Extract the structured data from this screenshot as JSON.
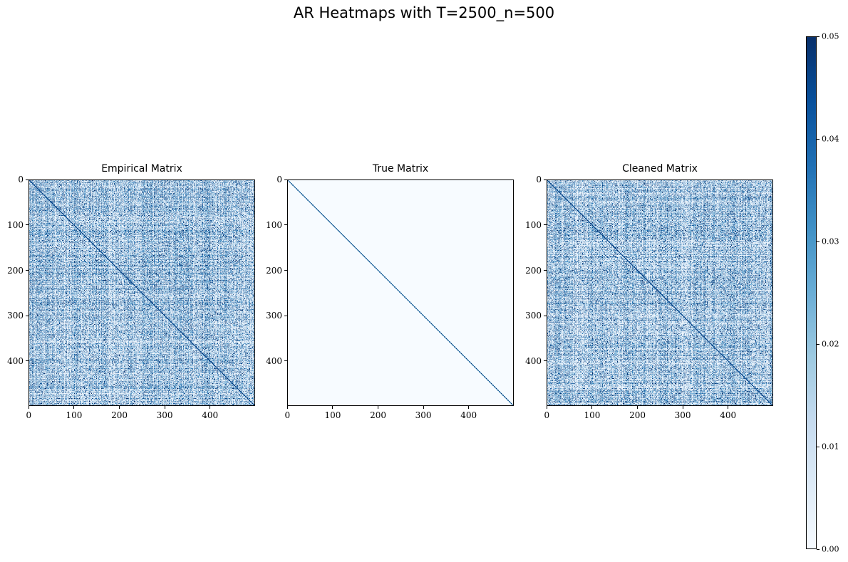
{
  "figure": {
    "title": "AR Heatmaps with T=2500_n=500"
  },
  "chart_data": [
    {
      "type": "heatmap",
      "title": "Empirical Matrix",
      "matrix_size": 500,
      "x_ticks": [
        0,
        100,
        200,
        300,
        400
      ],
      "y_ticks": [
        0,
        100,
        200,
        300,
        400
      ],
      "colormap": "Blues",
      "vmin": 0.0,
      "vmax": 0.05,
      "diagonal_value": 0.05,
      "off_diagonal_pattern": "noisy, mostly 0.0-0.03 with scattered values near 0.05"
    },
    {
      "type": "heatmap",
      "title": "True Matrix",
      "matrix_size": 500,
      "x_ticks": [
        0,
        100,
        200,
        300,
        400
      ],
      "y_ticks": [
        0,
        100,
        200,
        300,
        400
      ],
      "colormap": "Blues",
      "vmin": 0.0,
      "vmax": 0.05,
      "diagonal_value": 0.05,
      "off_diagonal_pattern": "zero"
    },
    {
      "type": "heatmap",
      "title": "Cleaned Matrix",
      "matrix_size": 500,
      "x_ticks": [
        0,
        100,
        200,
        300,
        400
      ],
      "y_ticks": [
        0,
        100,
        200,
        300,
        400
      ],
      "colormap": "Blues",
      "vmin": 0.0,
      "vmax": 0.05,
      "diagonal_value": 0.05,
      "off_diagonal_pattern": "noisy, mostly 0.0-0.03 with scattered values near 0.05"
    }
  ],
  "colorbar": {
    "ticks": [
      "0.00",
      "0.01",
      "0.02",
      "0.03",
      "0.04",
      "0.05"
    ],
    "min": 0.0,
    "max": 0.05,
    "colors": {
      "low": "#f7fbff",
      "high": "#08306b"
    }
  }
}
